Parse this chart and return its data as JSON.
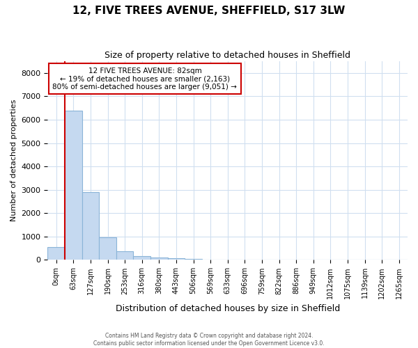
{
  "title": "12, FIVE TREES AVENUE, SHEFFIELD, S17 3LW",
  "subtitle": "Size of property relative to detached houses in Sheffield",
  "xlabel": "Distribution of detached houses by size in Sheffield",
  "ylabel": "Number of detached properties",
  "bar_labels": [
    "0sqm",
    "63sqm",
    "127sqm",
    "190sqm",
    "253sqm",
    "316sqm",
    "380sqm",
    "443sqm",
    "506sqm",
    "569sqm",
    "633sqm",
    "696sqm",
    "759sqm",
    "822sqm",
    "886sqm",
    "949sqm",
    "1012sqm",
    "1075sqm",
    "1139sqm",
    "1202sqm",
    "1265sqm"
  ],
  "bar_values": [
    550,
    6400,
    2900,
    975,
    375,
    175,
    100,
    75,
    50,
    0,
    0,
    0,
    0,
    0,
    0,
    0,
    0,
    0,
    0,
    0,
    0
  ],
  "bar_color": "#c5d9f0",
  "bar_edge_color": "#8ab4d8",
  "annotation_title": "12 FIVE TREES AVENUE: 82sqm",
  "annotation_line1": "← 19% of detached houses are smaller (2,163)",
  "annotation_line2": "80% of semi-detached houses are larger (9,051) →",
  "annotation_box_edgecolor": "#cc0000",
  "red_line_x": 0.5,
  "ylim": [
    0,
    8500
  ],
  "yticks": [
    0,
    1000,
    2000,
    3000,
    4000,
    5000,
    6000,
    7000,
    8000
  ],
  "grid_color": "#d0dff0",
  "bg_color": "#ffffff",
  "footer_line1": "Contains HM Land Registry data © Crown copyright and database right 2024.",
  "footer_line2": "Contains public sector information licensed under the Open Government Licence v3.0."
}
